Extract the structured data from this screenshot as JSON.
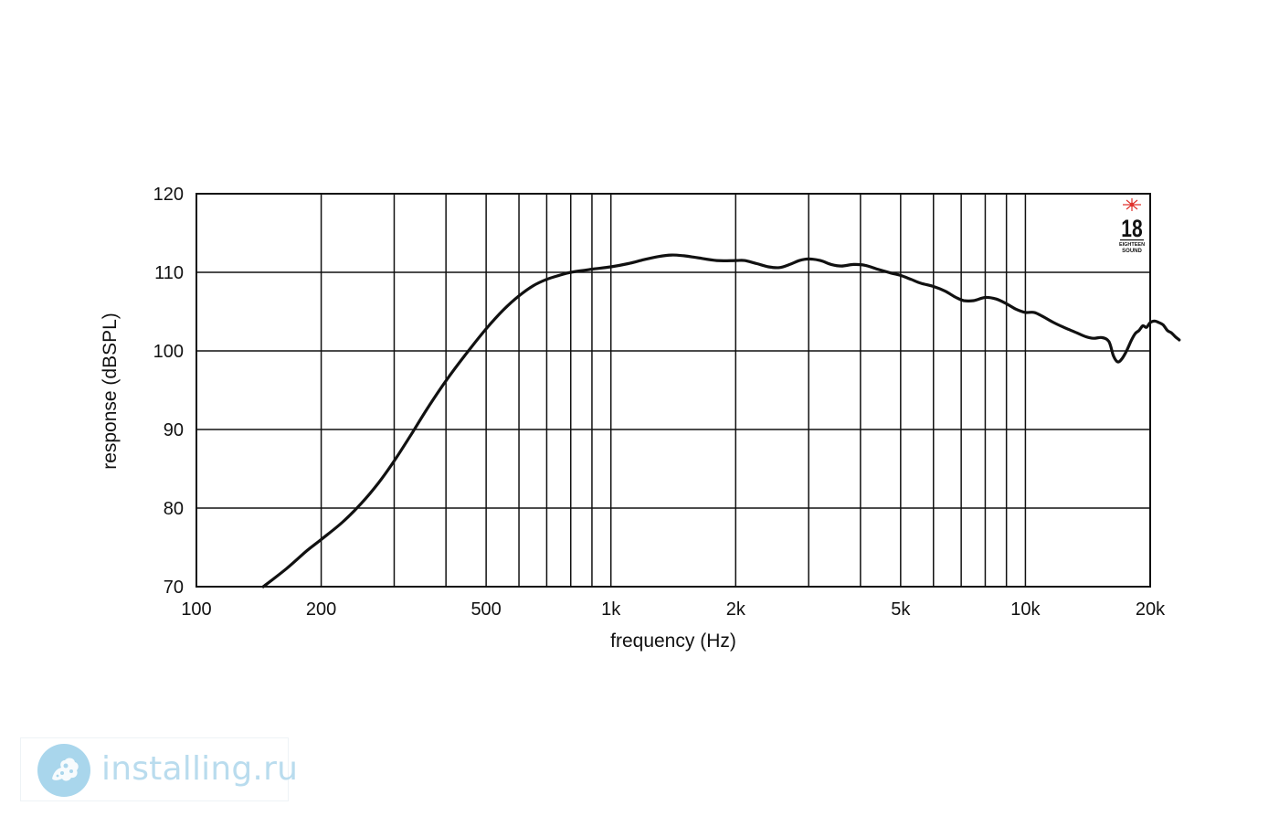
{
  "chart_data": {
    "type": "line",
    "title": "",
    "xlabel": "frequency (Hz)",
    "ylabel": "response (dBSPL)",
    "xscale": "log",
    "xlim": [
      100,
      20000
    ],
    "ylim": [
      70,
      120
    ],
    "grid": true,
    "x_ticks": [
      {
        "value": 100,
        "label": "100"
      },
      {
        "value": 200,
        "label": "200"
      },
      {
        "value": 500,
        "label": "500"
      },
      {
        "value": 1000,
        "label": "1k"
      },
      {
        "value": 2000,
        "label": "2k"
      },
      {
        "value": 5000,
        "label": "5k"
      },
      {
        "value": 10000,
        "label": "10k"
      },
      {
        "value": 20000,
        "label": "20k"
      }
    ],
    "y_ticks": [
      {
        "value": 70,
        "label": "70"
      },
      {
        "value": 80,
        "label": "80"
      },
      {
        "value": 90,
        "label": "90"
      },
      {
        "value": 100,
        "label": "100"
      },
      {
        "value": 110,
        "label": "110"
      },
      {
        "value": 120,
        "label": "120"
      }
    ],
    "x_gridlines": [
      200,
      300,
      400,
      500,
      600,
      700,
      800,
      900,
      1000,
      2000,
      3000,
      4000,
      5000,
      6000,
      7000,
      8000,
      9000,
      10000
    ],
    "y_gridlines": [
      80,
      90,
      100,
      110
    ],
    "series": [
      {
        "color": "#111111",
        "points": [
          [
            145,
            70
          ],
          [
            165,
            72.3
          ],
          [
            185,
            74.6
          ],
          [
            200,
            76.0
          ],
          [
            225,
            78.2
          ],
          [
            250,
            80.6
          ],
          [
            275,
            83.2
          ],
          [
            300,
            86.0
          ],
          [
            330,
            89.4
          ],
          [
            360,
            92.6
          ],
          [
            400,
            96.2
          ],
          [
            450,
            99.8
          ],
          [
            500,
            102.8
          ],
          [
            550,
            105.2
          ],
          [
            600,
            107.0
          ],
          [
            650,
            108.3
          ],
          [
            700,
            109.1
          ],
          [
            750,
            109.6
          ],
          [
            800,
            110.0
          ],
          [
            900,
            110.4
          ],
          [
            1000,
            110.7
          ],
          [
            1100,
            111.1
          ],
          [
            1200,
            111.6
          ],
          [
            1300,
            112.0
          ],
          [
            1400,
            112.2
          ],
          [
            1500,
            112.1
          ],
          [
            1600,
            111.9
          ],
          [
            1800,
            111.5
          ],
          [
            2000,
            111.5
          ],
          [
            2100,
            111.5
          ],
          [
            2250,
            111.1
          ],
          [
            2400,
            110.7
          ],
          [
            2550,
            110.6
          ],
          [
            2700,
            111.0
          ],
          [
            2850,
            111.5
          ],
          [
            3000,
            111.7
          ],
          [
            3200,
            111.5
          ],
          [
            3400,
            111.0
          ],
          [
            3600,
            110.8
          ],
          [
            3850,
            111.0
          ],
          [
            4100,
            110.9
          ],
          [
            4400,
            110.4
          ],
          [
            4750,
            109.9
          ],
          [
            5000,
            109.6
          ],
          [
            5300,
            109.1
          ],
          [
            5600,
            108.6
          ],
          [
            6000,
            108.2
          ],
          [
            6400,
            107.6
          ],
          [
            6800,
            106.8
          ],
          [
            7100,
            106.4
          ],
          [
            7500,
            106.4
          ],
          [
            8000,
            106.8
          ],
          [
            8500,
            106.6
          ],
          [
            9000,
            106.0
          ],
          [
            9500,
            105.3
          ],
          [
            10000,
            104.9
          ],
          [
            10500,
            104.9
          ],
          [
            11000,
            104.4
          ],
          [
            11700,
            103.6
          ],
          [
            12500,
            102.9
          ],
          [
            13300,
            102.3
          ],
          [
            14000,
            101.8
          ],
          [
            14600,
            101.6
          ],
          [
            15300,
            101.7
          ],
          [
            15900,
            101.2
          ],
          [
            16300,
            99.4
          ],
          [
            16700,
            98.6
          ],
          [
            17100,
            99.0
          ],
          [
            17500,
            99.9
          ],
          [
            18000,
            101.3
          ],
          [
            18400,
            102.2
          ],
          [
            18800,
            102.6
          ],
          [
            19200,
            103.2
          ],
          [
            19600,
            103.0
          ],
          [
            20000,
            103.6
          ],
          [
            20500,
            103.8
          ],
          [
            21000,
            103.6
          ],
          [
            21500,
            103.3
          ],
          [
            22000,
            102.6
          ],
          [
            22500,
            102.3
          ],
          [
            23000,
            101.8
          ],
          [
            23500,
            101.4
          ]
        ]
      }
    ]
  },
  "brand_logo": {
    "number": "18",
    "line1": "EIGHTEEN",
    "line2": "SOUND",
    "accent_color": "#e0332d"
  },
  "watermark": {
    "text": "installing.ru",
    "color": "#b9dcee",
    "icon": "coral-circle-icon"
  }
}
